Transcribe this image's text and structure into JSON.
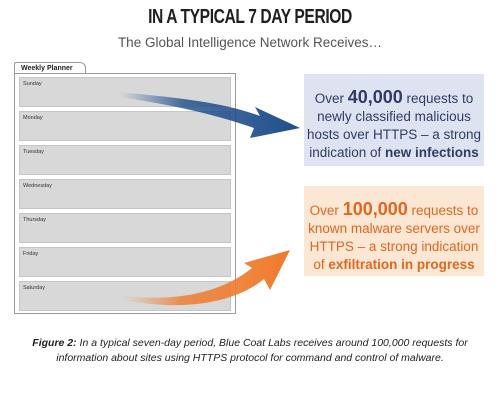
{
  "title": "IN A TYPICAL 7 DAY PERIOD",
  "subtitle": "The Global Intelligence Network Receives…",
  "planner": {
    "tab_label": "Weekly Planner",
    "days": [
      "Sunday",
      "Monday",
      "Tuesday",
      "Wednesday",
      "Thursday",
      "Friday",
      "Saturday"
    ]
  },
  "box_blue": {
    "pre": "Over ",
    "number": "40,000",
    "mid": " requests to newly classified malicious hosts over HTTPS – a strong indication of ",
    "emph": "new infections"
  },
  "box_orange": {
    "pre": "Over ",
    "number": "100,000",
    "mid": " requests to known malware servers over HTTPS – a strong indication of ",
    "emph": "exfiltration in progress"
  },
  "caption": {
    "label": "Figure 2:",
    "text": " In a typical seven-day period, Blue Coat Labs receives around 100,000 requests for information about sites using HTTPS protocol for command and control of malware."
  },
  "colors": {
    "blue_box": "#dde3f1",
    "blue_text": "#2f3d66",
    "blue_arrow": "#1f4e8c",
    "orange_box": "#fce6d4",
    "orange_text": "#e0681f",
    "orange_arrow": "#ef7a2c"
  }
}
